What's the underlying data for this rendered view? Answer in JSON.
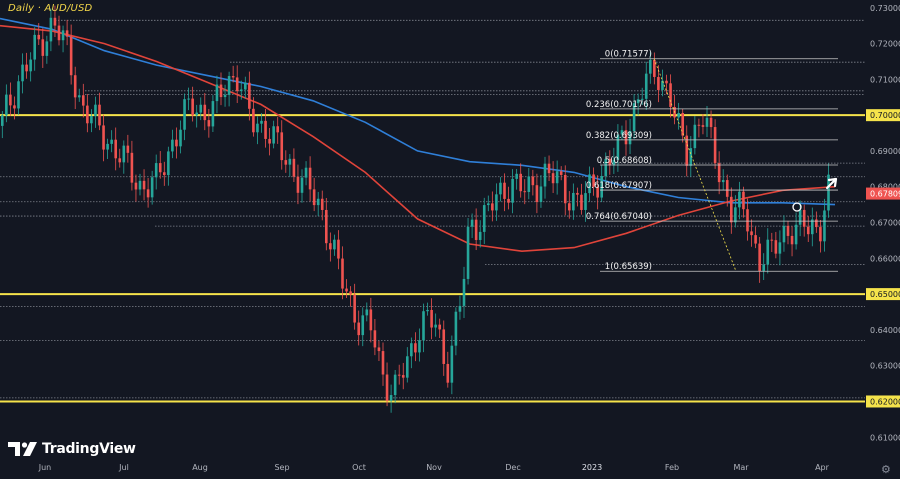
{
  "chart_data": {
    "type": "candlestick",
    "title": "Daily · AUD/USD",
    "brand": "TradingView",
    "ylim": [
      0.607,
      0.7305
    ],
    "y_ticks": [
      "0.73000",
      "0.72000",
      "0.71000",
      "0.70000",
      "0.69000",
      "0.68000",
      "0.67000",
      "0.66000",
      "0.65000",
      "0.64000",
      "0.63000",
      "0.62000",
      "0.61000"
    ],
    "x_ticks": [
      "Jun",
      "Jul",
      "Aug",
      "Sep",
      "Oct",
      "Nov",
      "Dec",
      "2023",
      "Feb",
      "Mar",
      "Apr"
    ],
    "current_price": "0.67809",
    "highlighted_levels": [
      "0.70000",
      "0.65000",
      "0.62000"
    ],
    "fib_levels": [
      {
        "label": "0(0.71577)",
        "value": 0.71577
      },
      {
        "label": "0.236(0.70176)",
        "value": 0.70176
      },
      {
        "label": "0.382(0.69309)",
        "value": 0.69309
      },
      {
        "label": "0.5(0.68608)",
        "value": 0.68608
      },
      {
        "label": "0.618(0.67907)",
        "value": 0.67907
      },
      {
        "label": "0.764(0.67040)",
        "value": 0.6704
      },
      {
        "label": "1(0.65639)",
        "value": 0.65639
      }
    ],
    "support_resistance_lines": [
      0.7265,
      0.7148,
      0.7068,
      0.7058,
      0.6828,
      0.6866,
      0.6758,
      0.6718,
      0.669,
      0.6583,
      0.6465,
      0.637,
      0.621
    ],
    "yellow_levels": [
      0.7,
      0.65,
      0.62
    ],
    "ma_red": [
      0.725,
      0.7235,
      0.72,
      0.715,
      0.709,
      0.703,
      0.694,
      0.684,
      0.671,
      0.664,
      0.662,
      0.663,
      0.667,
      0.672,
      0.676,
      0.679,
      0.68
    ],
    "ma_blue": [
      0.727,
      0.724,
      0.718,
      0.714,
      0.711,
      0.708,
      0.704,
      0.698,
      0.69,
      0.687,
      0.686,
      0.684,
      0.68,
      0.677,
      0.6755,
      0.6755,
      0.675
    ],
    "colors": {
      "background": "#131722",
      "up": "#26a69a",
      "down": "#ef5350",
      "ma_red": "#e0443a",
      "ma_blue": "#2f7fd8",
      "yellow": "#f5e34b",
      "grid_dotted": "#8b8f99",
      "price_tag": "#ef5350"
    }
  }
}
